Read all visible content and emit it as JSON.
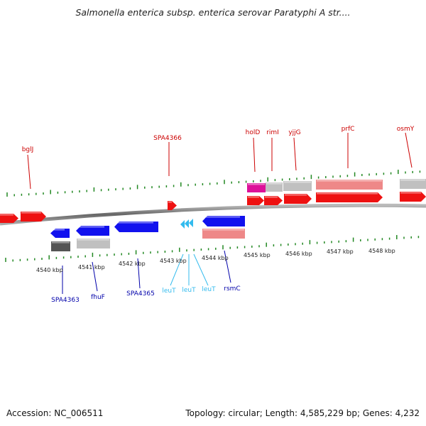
{
  "title": "Salmonella enterica subsp. enterica serovar Paratyphi A str....",
  "footer": {
    "accession": "Accession: NC_006511",
    "stats": "Topology: circular; Length: 4,585,229 bp; Genes: 4,232"
  },
  "colors": {
    "forward_gene": "#ee1111",
    "forward_label": "#cc0000",
    "reverse_gene": "#1111ee",
    "reverse_label": "#0000aa",
    "trna": "#33bbee",
    "pseudo_light": "#c0c0c0",
    "pseudo_dark": "#555555",
    "pseudo_pink": "#ee8888",
    "magenta": "#dd1199",
    "backbone": "#888888",
    "ticks": "#228822"
  },
  "scale": {
    "tick_labels": [
      "4540 kbp",
      "4541 kbp",
      "4542 kbp",
      "4543 kbp",
      "4544 kbp",
      "4545 kbp",
      "4546 kbp",
      "4547 kbp",
      "4548 kbp"
    ]
  },
  "forward_labels": [
    "bglJ",
    "SPA4366",
    "holD",
    "rimI",
    "yjjG",
    "prfC",
    "osmY"
  ],
  "reverse_labels": [
    "SPA4363",
    "fhuF",
    "SPA4365",
    "leuT",
    "leuT",
    "leuT",
    "rsmC"
  ]
}
